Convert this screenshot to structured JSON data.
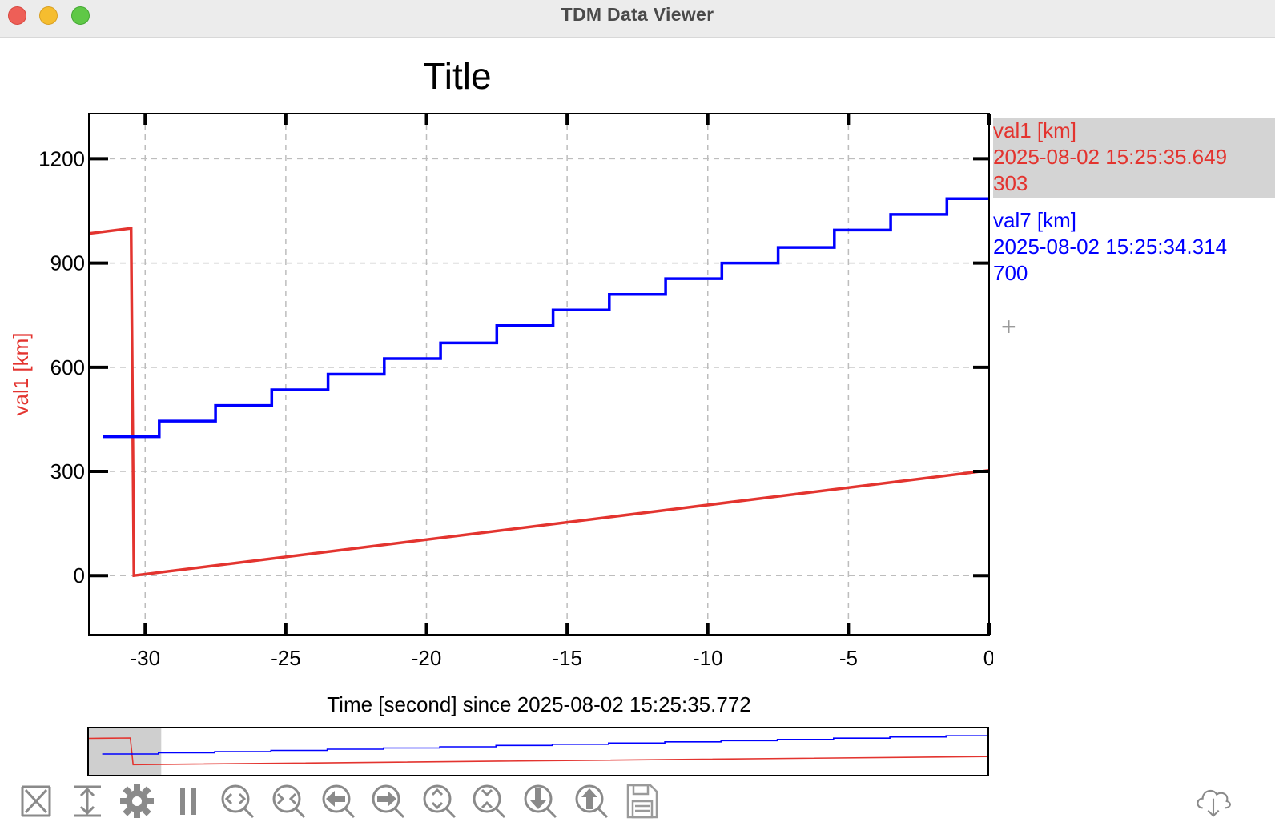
{
  "window": {
    "title": "TDM Data Viewer"
  },
  "chart_data": {
    "type": "line",
    "title": "Title",
    "xlabel": "Time [second] since 2025-08-02 15:25:35.772",
    "ylabel": "val1 [km]",
    "xlim": [
      -32,
      0
    ],
    "ylim": [
      -170,
      1330
    ],
    "x_ticks": [
      "-30",
      "-25",
      "-20",
      "-15",
      "-10",
      "-5",
      "0"
    ],
    "x_tick_values": [
      -30,
      -25,
      -20,
      -15,
      -10,
      -5,
      0
    ],
    "y_ticks": [
      "0",
      "300",
      "600",
      "900",
      "1200"
    ],
    "y_tick_values": [
      0,
      300,
      600,
      900,
      1200
    ],
    "grid": true,
    "series": [
      {
        "name": "val1 [km]",
        "color": "#e3342f",
        "style": "line",
        "x": [
          -32,
          -30.5,
          -30.4,
          0
        ],
        "y": [
          985,
          1000,
          0,
          303
        ]
      },
      {
        "name": "val7 [km]",
        "color": "#0000ff",
        "style": "step-post",
        "x": [
          -31.5,
          -29.5,
          -27.5,
          -25.5,
          -23.5,
          -21.5,
          -19.5,
          -17.5,
          -15.5,
          -13.5,
          -11.5,
          -9.5,
          -7.5,
          -5.5,
          -3.5,
          -1.5,
          0
        ],
        "y": [
          400,
          445,
          490,
          535,
          580,
          625,
          670,
          720,
          765,
          810,
          855,
          900,
          945,
          995,
          1040,
          1085,
          1085
        ]
      }
    ],
    "overview": {
      "selection": [
        -32,
        -29.4
      ],
      "full_range": [
        -32,
        0
      ]
    }
  },
  "legend": [
    {
      "name": "val1 [km]",
      "timestamp": "2025-08-02 15:25:35.649",
      "value": "303",
      "color": "#e3342f"
    },
    {
      "name": "val7 [km]",
      "timestamp": "2025-08-02 15:25:34.314",
      "value": "700",
      "color": "#0000ff"
    }
  ],
  "legend_add_symbol": "+",
  "toolbar": {
    "items": [
      {
        "name": "fit-all-icon"
      },
      {
        "name": "fit-vertical-icon"
      },
      {
        "name": "settings-icon"
      },
      {
        "name": "pause-icon"
      },
      {
        "name": "zoom-in-horizontal-icon"
      },
      {
        "name": "zoom-out-horizontal-icon"
      },
      {
        "name": "pan-left-icon"
      },
      {
        "name": "pan-right-icon"
      },
      {
        "name": "zoom-in-vertical-icon"
      },
      {
        "name": "zoom-out-vertical-icon"
      },
      {
        "name": "pan-down-icon"
      },
      {
        "name": "pan-up-icon"
      },
      {
        "name": "save-icon"
      }
    ],
    "right_item": {
      "name": "cloud-download-icon"
    }
  }
}
